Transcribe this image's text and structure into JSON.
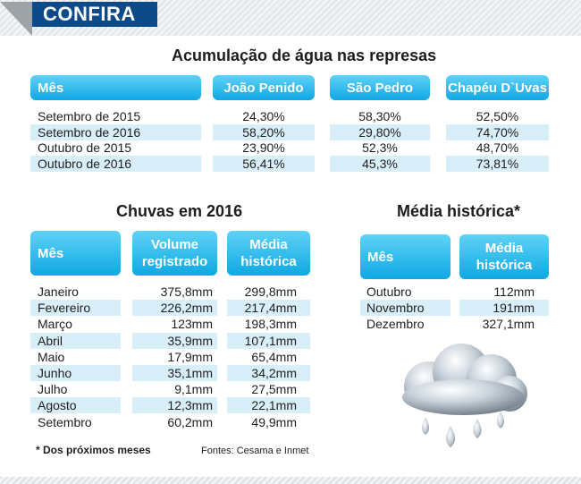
{
  "header": {
    "tag": "CONFIRA"
  },
  "represas": {
    "title": "Acumulação de água nas represas",
    "columns": [
      "Mês",
      "João Penido",
      "São Pedro",
      "Chapéu D`Uvas"
    ],
    "rows": [
      [
        "Setembro de 2015",
        "24,30%",
        "58,30%",
        "52,50%"
      ],
      [
        "Setembro de 2016",
        "58,20%",
        "29,80%",
        "74,70%"
      ],
      [
        "Outubro de 2015",
        "23,90%",
        "52,3%",
        "48,70%"
      ],
      [
        "Outubro de 2016",
        "56,41%",
        "45,3%",
        "73,81%"
      ]
    ]
  },
  "chuvas": {
    "title": "Chuvas em 2016",
    "columns": [
      "Mês",
      "Volume registrado",
      "Média histórica"
    ],
    "col_lines": [
      [
        "Mês"
      ],
      [
        "Volume",
        "registrado"
      ],
      [
        "Média",
        "histórica"
      ]
    ],
    "rows": [
      [
        "Janeiro",
        "375,8mm",
        "299,8mm"
      ],
      [
        "Fevereiro",
        "226,2mm",
        "217,4mm"
      ],
      [
        "Março",
        "123mm",
        "198,3mm"
      ],
      [
        "Abril",
        "35,9mm",
        "107,1mm"
      ],
      [
        "Maio",
        "17,9mm",
        "65,4mm"
      ],
      [
        "Junho",
        "35,1mm",
        "34,2mm"
      ],
      [
        "Julho",
        "9,1mm",
        "27,5mm"
      ],
      [
        "Agosto",
        "12,3mm",
        "22,1mm"
      ],
      [
        "Setembro",
        "60,2mm",
        "49,9mm"
      ]
    ]
  },
  "media": {
    "title": "Média histórica*",
    "columns": [
      "Mês",
      "Média histórica"
    ],
    "col_lines": [
      [
        "Mês"
      ],
      [
        "Média",
        "histórica"
      ]
    ],
    "rows": [
      [
        "Outubro",
        "112mm"
      ],
      [
        "Novembro",
        "191mm"
      ],
      [
        "Dezembro",
        "327,1mm"
      ]
    ]
  },
  "footnote": "* Dos próximos meses",
  "sources": "Fontes: Cesama e Inmet",
  "icons": {
    "illustration": "rain-cloud-icon"
  },
  "colors": {
    "tag": "#0d4a8a",
    "header": "#0fa8e4",
    "stripe": "#d8eef8"
  }
}
